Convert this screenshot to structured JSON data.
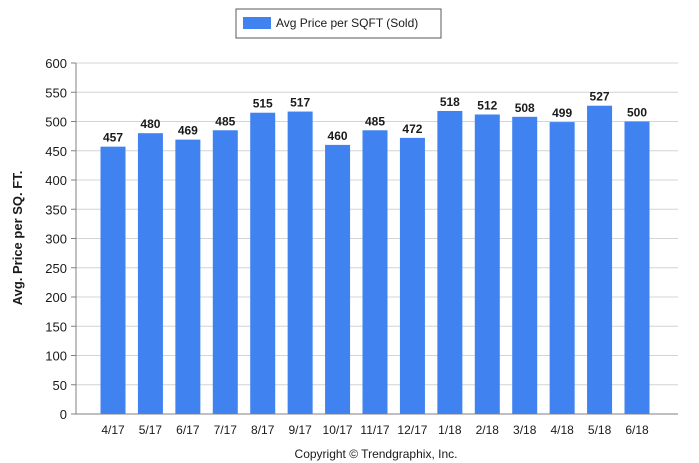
{
  "chart_data": {
    "type": "bar",
    "categories": [
      "4/17",
      "5/17",
      "6/17",
      "7/17",
      "8/17",
      "9/17",
      "10/17",
      "11/17",
      "12/17",
      "1/18",
      "2/18",
      "3/18",
      "4/18",
      "5/18",
      "6/18"
    ],
    "series": [
      {
        "name": "Avg Price per SQFT (Sold)",
        "values": [
          457,
          480,
          469,
          485,
          515,
          517,
          460,
          485,
          472,
          518,
          512,
          508,
          499,
          527,
          500
        ]
      }
    ],
    "title": "",
    "xlabel": "",
    "ylabel": "Avg. Price per SQ. FT.",
    "ylim": [
      0,
      600
    ],
    "yticks": [
      0,
      50,
      100,
      150,
      200,
      250,
      300,
      350,
      400,
      450,
      500,
      550,
      600
    ],
    "grid": true,
    "legend_position": "top-center",
    "data_labels": true,
    "bar_color": "#3f82f0"
  },
  "footer": {
    "copyright": "Copyright © Trendgraphix, Inc."
  }
}
